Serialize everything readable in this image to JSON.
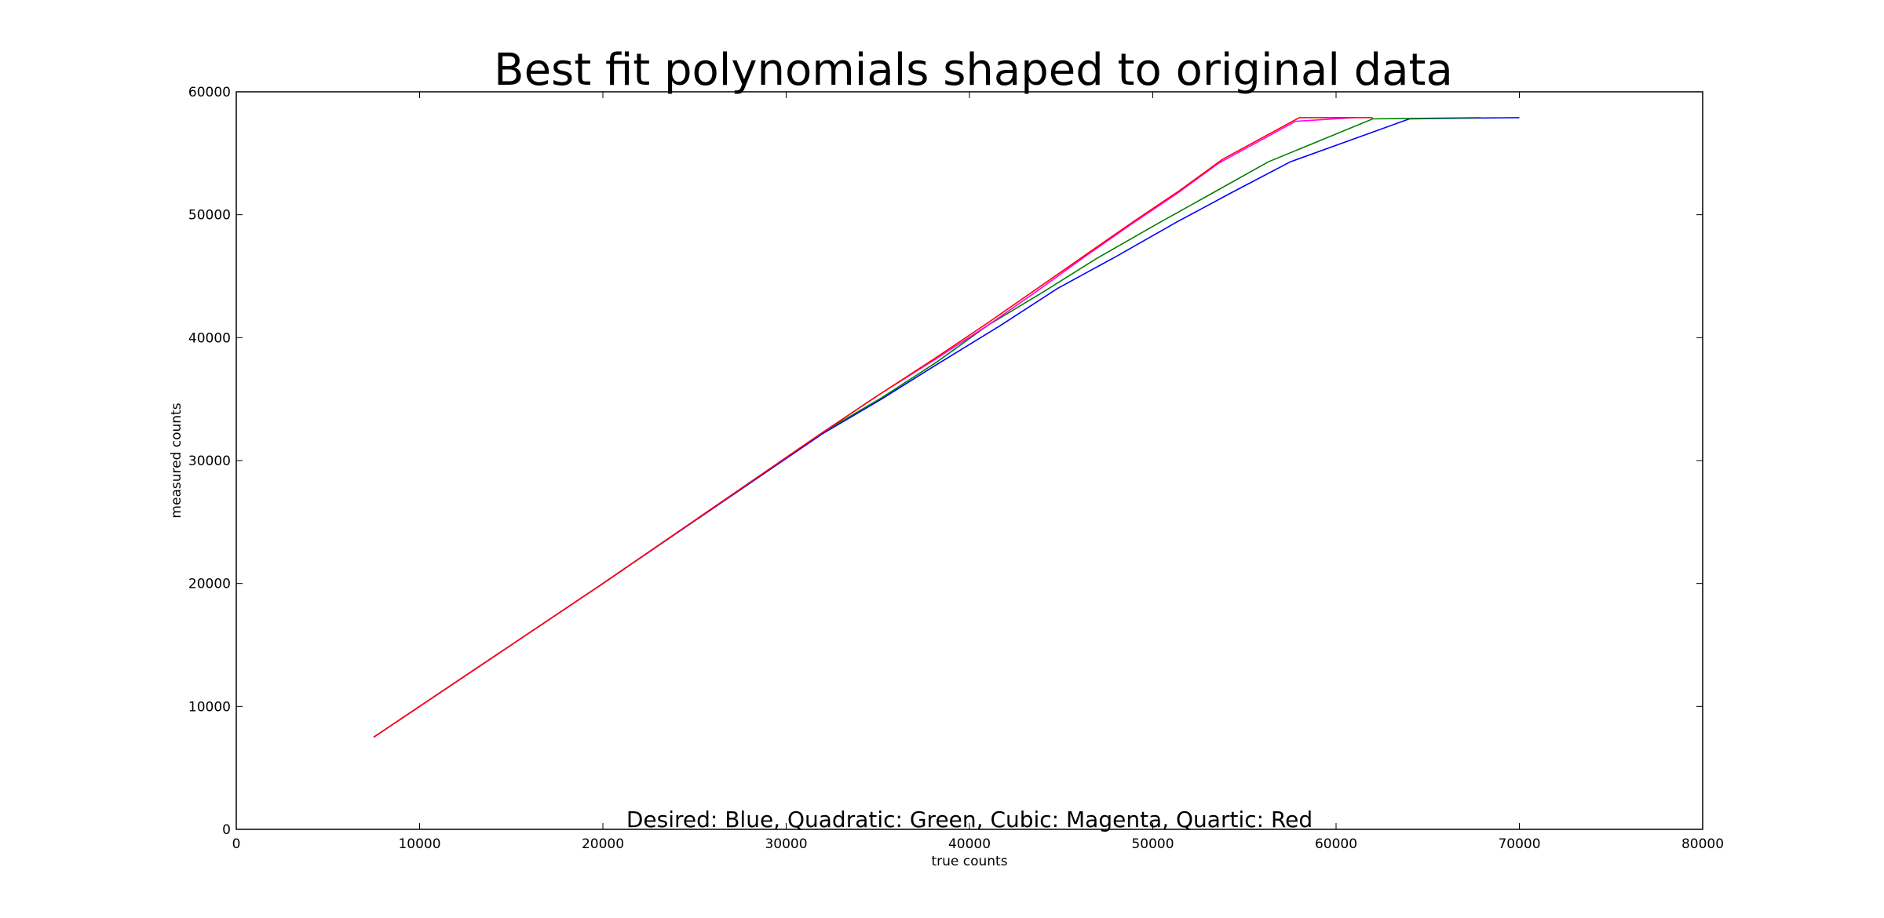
{
  "chart_data": {
    "type": "line",
    "title": "Best fit polynomials shaped to original data",
    "xlabel": "true counts",
    "ylabel": "measured counts",
    "xlim": [
      0,
      80000
    ],
    "ylim": [
      0,
      60000
    ],
    "xticks": [
      0,
      10000,
      20000,
      30000,
      40000,
      50000,
      60000,
      70000,
      80000
    ],
    "yticks": [
      0,
      10000,
      20000,
      30000,
      40000,
      50000,
      60000
    ],
    "xtick_labels": [
      "0",
      "10000",
      "20000",
      "30000",
      "40000",
      "50000",
      "60000",
      "70000",
      "80000"
    ],
    "ytick_labels": [
      "0",
      "10000",
      "20000",
      "30000",
      "40000",
      "50000",
      "60000"
    ],
    "annotation": "Desired: Blue, Quadratic: Green, Cubic: Magenta, Quartic: Red",
    "grid": false,
    "series": [
      {
        "color": "#0000ff",
        "points": [
          [
            7500,
            7500
          ],
          [
            20000,
            20000
          ],
          [
            32000,
            32200
          ],
          [
            35200,
            35000
          ],
          [
            38200,
            37800
          ],
          [
            41700,
            41000
          ],
          [
            44800,
            44000
          ],
          [
            48000,
            46600
          ],
          [
            51300,
            49400
          ],
          [
            54300,
            51800
          ],
          [
            57500,
            54300
          ],
          [
            64000,
            57800
          ],
          [
            70000,
            57900
          ]
        ]
      },
      {
        "color": "#008000",
        "points": [
          [
            7500,
            7500
          ],
          [
            20000,
            20000
          ],
          [
            32000,
            32300
          ],
          [
            35200,
            35100
          ],
          [
            38200,
            38000
          ],
          [
            41000,
            41000
          ],
          [
            44000,
            43700
          ],
          [
            47000,
            46500
          ],
          [
            50300,
            49300
          ],
          [
            53300,
            51800
          ],
          [
            56300,
            54300
          ],
          [
            62000,
            57800
          ],
          [
            67900,
            57900
          ]
        ]
      },
      {
        "color": "#ff00ff",
        "points": [
          [
            7500,
            7500
          ],
          [
            20000,
            20000
          ],
          [
            32000,
            32300
          ],
          [
            35000,
            35300
          ],
          [
            38200,
            38300
          ],
          [
            41000,
            41000
          ],
          [
            43700,
            43800
          ],
          [
            46400,
            46700
          ],
          [
            48800,
            49200
          ],
          [
            51300,
            51700
          ],
          [
            53600,
            54200
          ],
          [
            57800,
            57600
          ],
          [
            61000,
            57900
          ]
        ]
      },
      {
        "color": "#ff0000",
        "points": [
          [
            7500,
            7500
          ],
          [
            20000,
            20000
          ],
          [
            32000,
            32300
          ],
          [
            35000,
            35300
          ],
          [
            38200,
            38400
          ],
          [
            41000,
            41200
          ],
          [
            43700,
            44000
          ],
          [
            46400,
            46800
          ],
          [
            49000,
            49500
          ],
          [
            51500,
            52000
          ],
          [
            53800,
            54500
          ],
          [
            58000,
            57900
          ],
          [
            62000,
            57900
          ]
        ]
      }
    ]
  }
}
